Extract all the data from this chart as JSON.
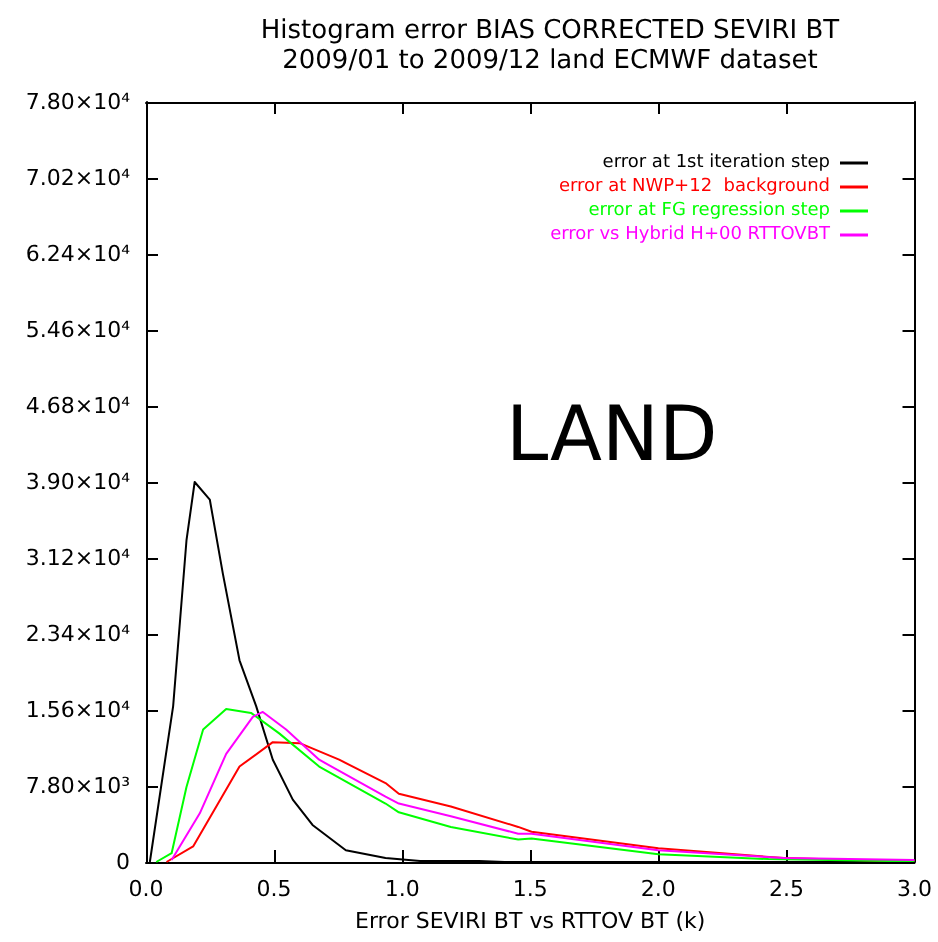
{
  "chart_data": {
    "type": "line",
    "title": "Histogram error BIAS CORRECTED SEVIRI BT",
    "subtitle": "2009/01 to 2009/12 land ECMWF dataset",
    "xlabel": "Error SEVIRI BT vs RTTOV BT (k)",
    "annotations": [
      "LAND"
    ],
    "series": [
      {
        "name": "error at 1st iteration step",
        "color": "#000000",
        "x": [
          0.015,
          0.106,
          0.158,
          0.19,
          0.249,
          0.3,
          0.365,
          0.43,
          0.495,
          0.573,
          0.65,
          0.78,
          0.935,
          1.07,
          1.3,
          1.4,
          2.0,
          3.0
        ],
        "values": [
          0,
          16000,
          33000,
          39000,
          37200,
          29600,
          20700,
          16000,
          10500,
          6400,
          3800,
          1200,
          400,
          100,
          100,
          0,
          0,
          0
        ]
      },
      {
        "name": "error at NWP+12  background",
        "color": "#ff0000",
        "x": [
          0.08,
          0.184,
          0.365,
          0.495,
          0.6,
          0.754,
          0.935,
          0.987,
          1.19,
          1.453,
          1.505,
          2.0,
          2.49,
          2.9,
          3.0
        ],
        "values": [
          0,
          1600,
          9800,
          12300,
          12200,
          10500,
          8100,
          7000,
          5700,
          3600,
          3100,
          1400,
          400,
          100,
          100
        ]
      },
      {
        "name": "error at FG regression step",
        "color": "#00ff00",
        "x": [
          0.04,
          0.1,
          0.158,
          0.223,
          0.313,
          0.41,
          0.52,
          0.676,
          0.935,
          0.987,
          1.19,
          1.453,
          1.505,
          2.0,
          2.43,
          2.9,
          3.0
        ],
        "values": [
          0,
          900,
          7700,
          13600,
          15700,
          15300,
          13200,
          9800,
          6000,
          5100,
          3600,
          2300,
          2400,
          800,
          300,
          100,
          100
        ]
      },
      {
        "name": "error vs Hybrid H+00 RTTOVBT",
        "color": "#ff00ff",
        "x": [
          0.1,
          0.21,
          0.313,
          0.417,
          0.456,
          0.547,
          0.676,
          0.935,
          0.987,
          1.19,
          1.453,
          1.505,
          2.0,
          2.49,
          3.0
        ],
        "values": [
          200,
          5000,
          11100,
          14900,
          15400,
          13600,
          10500,
          6700,
          6000,
          4700,
          2900,
          2900,
          1200,
          400,
          200
        ]
      }
    ],
    "xlim": [
      0,
      3
    ],
    "xticks": [
      {
        "value": 0,
        "label": "0.0"
      },
      {
        "value": 0.5,
        "label": "0.5"
      },
      {
        "value": 1,
        "label": "1.0"
      },
      {
        "value": 1.5,
        "label": "1.5"
      },
      {
        "value": 2,
        "label": "2.0"
      },
      {
        "value": 2.5,
        "label": "2.5"
      },
      {
        "value": 3,
        "label": "3.0"
      }
    ],
    "ylim": [
      0,
      78000
    ],
    "yticks": [
      0,
      {
        "value": 7800,
        "label": "7.80×10³"
      },
      {
        "value": 15600,
        "label": "1.56×10⁴"
      },
      {
        "value": 23400,
        "label": "2.34×10⁴"
      },
      {
        "value": 31200,
        "label": "3.12×10⁴"
      },
      {
        "value": 39000,
        "label": "3.90×10⁴"
      },
      {
        "value": 46800,
        "label": "4.68×10⁴"
      },
      {
        "value": 54600,
        "label": "5.46×10⁴"
      },
      {
        "value": 62400,
        "label": "6.24×10⁴"
      },
      {
        "value": 70200,
        "label": "7.02×10⁴"
      },
      {
        "value": 78000,
        "label": "7.80×10⁴"
      }
    ],
    "grid": false,
    "legend": "top right",
    "marker": "none",
    "line_style": "solid"
  }
}
